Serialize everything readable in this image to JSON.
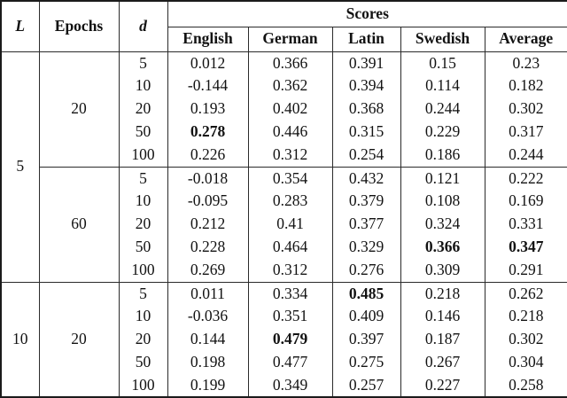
{
  "header": {
    "l_label": "L",
    "epochs_label": "Epochs",
    "d_label": "d",
    "scores_label": "Scores",
    "languages": [
      "English",
      "German",
      "Latin",
      "Swedish",
      "Average"
    ]
  },
  "groups": [
    {
      "l": "5",
      "epoch_blocks": [
        {
          "epochs": "20",
          "rows": [
            {
              "d": "5",
              "values": [
                "0.012",
                "0.366",
                "0.391",
                "0.15",
                "0.23"
              ],
              "bold": []
            },
            {
              "d": "10",
              "values": [
                "-0.144",
                "0.362",
                "0.394",
                "0.114",
                "0.182"
              ],
              "bold": []
            },
            {
              "d": "20",
              "values": [
                "0.193",
                "0.402",
                "0.368",
                "0.244",
                "0.302"
              ],
              "bold": []
            },
            {
              "d": "50",
              "values": [
                "0.278",
                "0.446",
                "0.315",
                "0.229",
                "0.317"
              ],
              "bold": [
                0
              ]
            },
            {
              "d": "100",
              "values": [
                "0.226",
                "0.312",
                "0.254",
                "0.186",
                "0.244"
              ],
              "bold": []
            }
          ]
        },
        {
          "epochs": "60",
          "rows": [
            {
              "d": "5",
              "values": [
                "-0.018",
                "0.354",
                "0.432",
                "0.121",
                "0.222"
              ],
              "bold": []
            },
            {
              "d": "10",
              "values": [
                "-0.095",
                "0.283",
                "0.379",
                "0.108",
                "0.169"
              ],
              "bold": []
            },
            {
              "d": "20",
              "values": [
                "0.212",
                "0.41",
                "0.377",
                "0.324",
                "0.331"
              ],
              "bold": []
            },
            {
              "d": "50",
              "values": [
                "0.228",
                "0.464",
                "0.329",
                "0.366",
                "0.347"
              ],
              "bold": [
                3,
                4
              ]
            },
            {
              "d": "100",
              "values": [
                "0.269",
                "0.312",
                "0.276",
                "0.309",
                "0.291"
              ],
              "bold": []
            }
          ]
        }
      ]
    },
    {
      "l": "10",
      "epoch_blocks": [
        {
          "epochs": "20",
          "rows": [
            {
              "d": "5",
              "values": [
                "0.011",
                "0.334",
                "0.485",
                "0.218",
                "0.262"
              ],
              "bold": [
                2
              ]
            },
            {
              "d": "10",
              "values": [
                "-0.036",
                "0.351",
                "0.409",
                "0.146",
                "0.218"
              ],
              "bold": []
            },
            {
              "d": "20",
              "values": [
                "0.144",
                "0.479",
                "0.397",
                "0.187",
                "0.302"
              ],
              "bold": [
                1
              ]
            },
            {
              "d": "50",
              "values": [
                "0.198",
                "0.477",
                "0.275",
                "0.267",
                "0.304"
              ],
              "bold": []
            },
            {
              "d": "100",
              "values": [
                "0.199",
                "0.349",
                "0.257",
                "0.227",
                "0.258"
              ],
              "bold": []
            }
          ]
        }
      ]
    }
  ],
  "colors": {
    "text": "#121212",
    "border": "#2b2b2b",
    "outer_border": "#1b1b1b",
    "background": "#ffffff"
  }
}
